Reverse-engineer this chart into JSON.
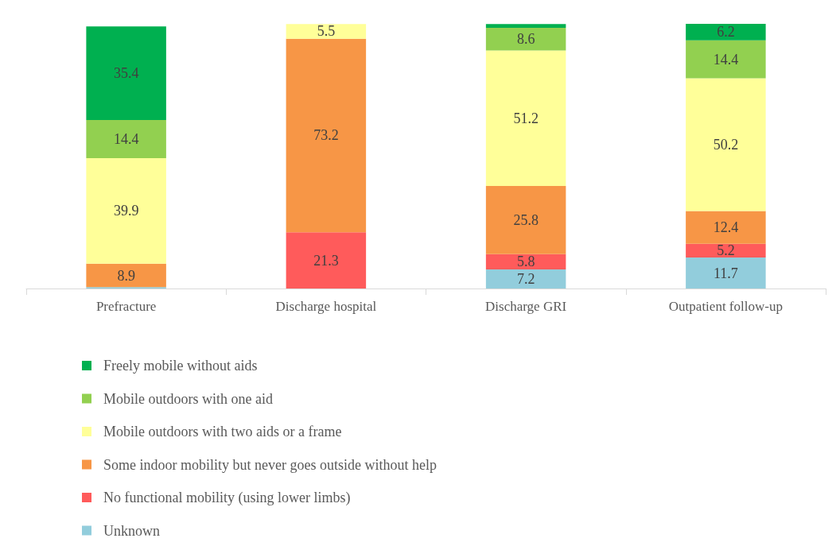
{
  "chart_data": {
    "type": "bar",
    "stacked": true,
    "legend": "bottom",
    "categories": [
      "Prefracture",
      "Discharge hospital",
      "Discharge GRI",
      "Outpatient follow-up"
    ],
    "series": [
      {
        "name": "Unknown",
        "color": "#92cddc",
        "values": [
          0.5,
          null,
          7.2,
          11.7
        ],
        "value_labels": [
          null,
          null,
          "7.2",
          "11.7"
        ]
      },
      {
        "name": "No functional mobility (using lower limbs)",
        "color": "#ff5b5b",
        "values": [
          null,
          21.3,
          5.8,
          5.2
        ],
        "value_labels": [
          null,
          "21.3",
          "5.8",
          "5.2"
        ]
      },
      {
        "name": "Some indoor mobility but never goes outside without help",
        "color": "#f79646",
        "values": [
          8.9,
          73.2,
          25.8,
          12.4
        ],
        "value_labels": [
          "8.9",
          "73.2",
          "25.8",
          "12.4"
        ]
      },
      {
        "name": "Mobile outdoors with two aids or a frame",
        "color": "#ffff99",
        "values": [
          39.9,
          5.5,
          51.2,
          50.2
        ],
        "value_labels": [
          "39.9",
          "5.5",
          "51.2",
          "50.2"
        ]
      },
      {
        "name": "Mobile outdoors with one aid",
        "color": "#92d050",
        "values": [
          14.4,
          null,
          8.6,
          14.4
        ],
        "value_labels": [
          "14.4",
          null,
          "8.6",
          "14.4"
        ]
      },
      {
        "name": "Freely mobile without aids",
        "color": "#00b050",
        "values": [
          35.4,
          null,
          1.4,
          6.2
        ],
        "value_labels": [
          "35.4",
          null,
          null,
          "6.2"
        ]
      }
    ]
  }
}
